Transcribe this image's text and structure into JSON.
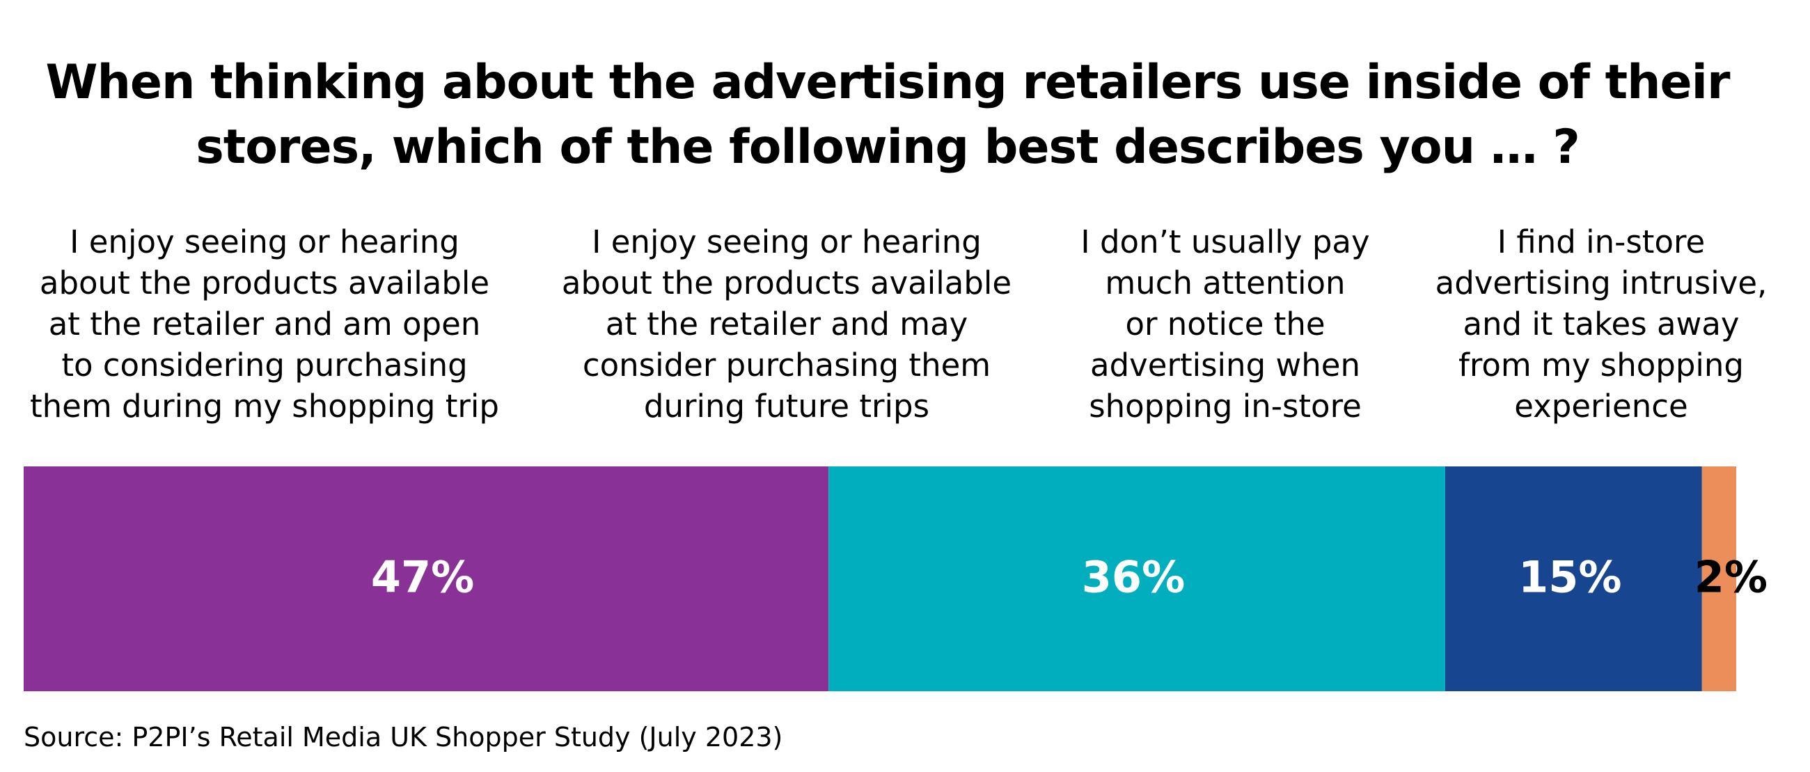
{
  "title": {
    "line1": "When thinking about the advertising retailers use inside of their",
    "line2": "stores, which of the following best describes you … ?"
  },
  "colors": {
    "purple": "#8A3197",
    "teal": "#00AEBD",
    "navy": "#17458F",
    "orange": "#EB8E5A",
    "label_light": "#FFFFFF",
    "label_dark": "#000000"
  },
  "chart_data": {
    "type": "bar",
    "orientation": "horizontal-stacked-100",
    "title": "When thinking about the advertising retailers use inside of their stores, which of the following best describes you … ?",
    "unit": "%",
    "series": [
      {
        "name": "I enjoy seeing or hearing about the products available at the retailer and am open to considering purchasing them during my shopping trip",
        "label_lines": [
          "I enjoy seeing or hearing",
          "about the products available",
          "at the retailer and am open",
          "to considering purchasing",
          "them during my shopping trip"
        ],
        "value": 47,
        "value_label": "47%",
        "color": "#8A3197"
      },
      {
        "name": "I enjoy seeing or hearing about the products available at the retailer and may consider purchasing them during future trips",
        "label_lines": [
          "I enjoy seeing or hearing",
          "about the products available",
          "at the retailer and may",
          "consider purchasing them",
          "during future trips"
        ],
        "value": 36,
        "value_label": "36%",
        "color": "#00AEBD"
      },
      {
        "name": "I don't usually pay much attention or notice the advertising when shopping in-store",
        "label_lines": [
          "I don’t usually pay",
          "much attention",
          "or notice the",
          "advertising when",
          "shopping in-store"
        ],
        "value": 15,
        "value_label": "15%",
        "color": "#17458F"
      },
      {
        "name": "I find in-store advertising intrusive, and it takes away from my shopping experience",
        "label_lines": [
          "I find in-store",
          "advertising intrusive,",
          "and it takes away",
          "from my shopping",
          "experience"
        ],
        "value": 2,
        "value_label": "2%",
        "color": "#EB8E5A"
      }
    ],
    "xlim": [
      0,
      100
    ]
  },
  "source": "Source: P2PI’s Retail Media UK Shopper Study (July 2023)"
}
